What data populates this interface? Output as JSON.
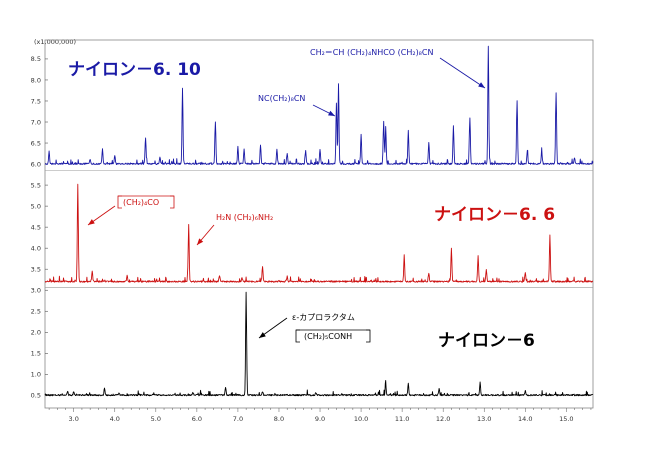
{
  "chart_data": {
    "type": "line",
    "x": {
      "ticks": [
        3.0,
        4.0,
        5.0,
        6.0,
        7.0,
        8.0,
        9.0,
        10.0,
        11.0,
        12.0,
        13.0,
        14.0,
        15.0
      ],
      "tick_labels": [
        "3.0",
        "4.0",
        "5.0",
        "6.0",
        "7.0",
        "8.0",
        "9.0",
        "10.0",
        "11.0",
        "12.0",
        "13.0",
        "14.0",
        "15.0"
      ],
      "range": [
        2.3,
        15.65
      ]
    },
    "y": {
      "multiplier_label": "(x1,000,000)",
      "ticks": [
        0.5,
        1.0,
        1.5,
        2.0,
        2.5,
        3.0,
        3.5,
        4.0,
        4.5,
        5.0,
        5.5,
        6.0,
        6.5,
        7.0,
        7.5,
        8.0,
        8.5
      ],
      "tick_labels": [
        "0.5",
        "1.0",
        "1.5",
        "2.0",
        "2.5",
        "3.0",
        "3.5",
        "4.0",
        "4.5",
        "5.0",
        "5.5",
        "6.0",
        "6.5",
        "7.0",
        "7.5",
        "8.0",
        "8.5"
      ],
      "range": [
        0.2,
        8.95
      ]
    },
    "grid": false,
    "series": [
      {
        "name": "ナイロン－6",
        "color": "#000000",
        "baseline": 0.5,
        "peaks": [
          [
            2.85,
            0.1
          ],
          [
            3.0,
            0.08
          ],
          [
            3.75,
            0.18
          ],
          [
            4.1,
            0.05
          ],
          [
            5.9,
            0.06
          ],
          [
            6.7,
            0.2
          ],
          [
            7.2,
            2.45
          ],
          [
            7.6,
            0.08
          ],
          [
            8.9,
            0.06
          ],
          [
            10.6,
            0.25
          ],
          [
            11.15,
            0.28
          ],
          [
            11.9,
            0.15
          ],
          [
            12.9,
            0.3
          ],
          [
            14.0,
            0.1
          ]
        ]
      },
      {
        "name": "ナイロン－6．6",
        "color": "#cc1111",
        "baseline": 3.2,
        "peaks": [
          [
            3.1,
            2.3
          ],
          [
            3.45,
            0.25
          ],
          [
            4.3,
            0.15
          ],
          [
            5.8,
            1.35
          ],
          [
            6.55,
            0.15
          ],
          [
            7.1,
            0.1
          ],
          [
            7.6,
            0.35
          ],
          [
            8.2,
            0.12
          ],
          [
            11.05,
            0.6
          ],
          [
            11.65,
            0.2
          ],
          [
            12.2,
            0.8
          ],
          [
            12.85,
            0.6
          ],
          [
            13.05,
            0.3
          ],
          [
            14.0,
            0.2
          ],
          [
            14.6,
            1.1
          ]
        ]
      },
      {
        "name": "ナイロン－6．10",
        "color": "#1a1aa6",
        "baseline": 6.0,
        "peaks": [
          [
            2.4,
            0.3
          ],
          [
            3.4,
            0.1
          ],
          [
            3.7,
            0.35
          ],
          [
            4.0,
            0.2
          ],
          [
            4.75,
            0.6
          ],
          [
            5.1,
            0.15
          ],
          [
            5.65,
            1.8
          ],
          [
            6.45,
            1.0
          ],
          [
            7.0,
            0.4
          ],
          [
            7.15,
            0.35
          ],
          [
            7.55,
            0.45
          ],
          [
            7.95,
            0.35
          ],
          [
            8.2,
            0.25
          ],
          [
            8.65,
            0.3
          ],
          [
            9.0,
            0.35
          ],
          [
            9.4,
            1.45
          ],
          [
            9.45,
            1.9
          ],
          [
            10.0,
            0.7
          ],
          [
            10.55,
            1.0
          ],
          [
            10.6,
            0.9
          ],
          [
            11.15,
            0.8
          ],
          [
            11.65,
            0.5
          ],
          [
            12.25,
            0.9
          ],
          [
            12.65,
            1.1
          ],
          [
            13.1,
            2.8
          ],
          [
            13.8,
            1.5
          ],
          [
            14.05,
            0.3
          ],
          [
            14.4,
            0.3
          ],
          [
            14.75,
            1.7
          ],
          [
            15.2,
            0.15
          ]
        ]
      }
    ],
    "annotations": [
      {
        "text": "CH₂＝CH (CH₂)₄NHCO (CH₂)₈CN",
        "color": "#1a1aa6"
      },
      {
        "text": "NC(CH₂)₈CN",
        "color": "#1a1aa6"
      },
      {
        "text": "(CH₂)₄CO",
        "color": "#cc1111",
        "boxed": true
      },
      {
        "text": "H₂N (CH₂)₆NH₂",
        "color": "#cc1111"
      },
      {
        "text": "ε-カプロラクタム",
        "color": "#000000"
      },
      {
        "text": "(CH₂)₅CONH",
        "color": "#000000",
        "boxed": true
      }
    ],
    "labels": [
      {
        "text": "ナイロン－6. 10",
        "color": "#1a1aa6"
      },
      {
        "text": "ナイロン－6. 6",
        "color": "#cc1111"
      },
      {
        "text": "ナイロン－6",
        "color": "#000000"
      }
    ]
  }
}
